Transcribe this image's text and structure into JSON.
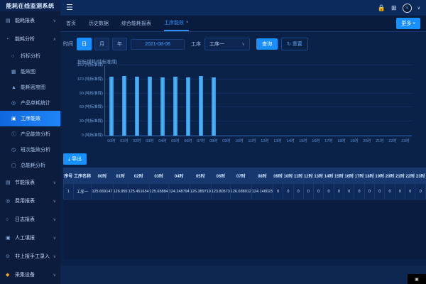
{
  "app": {
    "title": "能耗在线监测系统"
  },
  "topbar": {
    "icons": {
      "menu": "hamburger-icon",
      "lock": "lock-icon",
      "grid": "grid-icon",
      "avatar": "S",
      "dropdown": "chevron-down-icon"
    }
  },
  "sidebar": {
    "items": [
      {
        "label": "能耗报表",
        "icon": "report-icon",
        "glyph": "▤",
        "type": "group",
        "chevron": "∨"
      },
      {
        "label": "能耗分析",
        "icon": "analysis-icon",
        "glyph": "◔",
        "type": "group",
        "chevron": "∧"
      },
      {
        "label": "折标分析",
        "icon": "circle-icon",
        "glyph": "○",
        "type": "child"
      },
      {
        "label": "能效图",
        "icon": "chart-doc-icon",
        "glyph": "▦",
        "type": "child"
      },
      {
        "label": "能耗密度图",
        "icon": "triangle-chart-icon",
        "glyph": "▲",
        "type": "child"
      },
      {
        "label": "产品单耗统计",
        "icon": "target-icon",
        "glyph": "◎",
        "type": "child"
      },
      {
        "label": "工序能效",
        "icon": "grid-cell-icon",
        "glyph": "▣",
        "type": "child",
        "active": true
      },
      {
        "label": "产品能效分析",
        "icon": "info-circle-icon",
        "glyph": "ⓘ",
        "type": "child"
      },
      {
        "label": "班次能效分析",
        "icon": "clock-icon",
        "glyph": "◷",
        "type": "child"
      },
      {
        "label": "总能耗分析",
        "icon": "doc-icon",
        "glyph": "▢",
        "type": "child"
      },
      {
        "label": "节能报表",
        "icon": "report-icon",
        "glyph": "▤",
        "type": "group",
        "chevron": "∨"
      },
      {
        "label": "费用报表",
        "icon": "target-icon",
        "glyph": "◎",
        "type": "group",
        "chevron": "∨"
      },
      {
        "label": "日志报表",
        "icon": "circle-icon",
        "glyph": "○",
        "type": "group",
        "chevron": "∨"
      },
      {
        "label": "人工填报",
        "icon": "form-icon",
        "glyph": "▣",
        "type": "group",
        "chevron": "∨"
      },
      {
        "label": "非上报手工录入",
        "icon": "manual-entry-icon",
        "glyph": "⊙",
        "type": "group",
        "chevron": "∨"
      },
      {
        "label": "采集设备",
        "icon": "device-icon",
        "glyph": "◆",
        "type": "group",
        "chevron": "∨",
        "iconColor": "orange"
      }
    ]
  },
  "tabs": {
    "items": [
      {
        "label": "首页",
        "active": false,
        "closable": false
      },
      {
        "label": "历史数据",
        "active": false,
        "closable": false
      },
      {
        "label": "综合能耗报表",
        "active": false,
        "closable": false
      },
      {
        "label": "工序能效",
        "active": true,
        "closable": true
      }
    ],
    "more_label": "更多",
    "more_chevron": "∨",
    "close_glyph": "×"
  },
  "filters": {
    "time_label": "时间",
    "period_options": [
      "日",
      "月",
      "年"
    ],
    "period_selected": "日",
    "date_value": "2021-08-06",
    "process_label": "工序",
    "process_value": "工序一",
    "select_chevron": "∨",
    "search_label": "查询",
    "reset_label": "↻ 重置"
  },
  "chart_data": {
    "type": "bar",
    "title": "折标煤耗(吨标准煤)",
    "categories": [
      "00时",
      "01时",
      "02时",
      "03时",
      "04时",
      "05时",
      "06时",
      "07时",
      "08时",
      "09时",
      "10时",
      "11时",
      "12时",
      "13时",
      "14时",
      "15时",
      "16时",
      "17时",
      "18时",
      "19时",
      "20时",
      "21时",
      "22时",
      "23时"
    ],
    "values": [
      125.669147,
      126.955,
      125.451654,
      125.65884,
      124.248794,
      126.389719,
      123.80573,
      126.688912,
      124.148023,
      0,
      0,
      0,
      0,
      0,
      0,
      0,
      0,
      0,
      0,
      0,
      0,
      0,
      0,
      0
    ],
    "ylim": [
      0,
      150
    ],
    "yticks": [
      0,
      30,
      60,
      90,
      120,
      150
    ],
    "ytick_suffix": " (吨标准煤)",
    "xlabel": "",
    "ylabel": "折标煤耗(吨标准煤)",
    "grid": true,
    "legend": false,
    "bar_color": "#41aaf5"
  },
  "export": {
    "label": "⤓ 导出"
  },
  "table": {
    "columns": [
      "序号",
      "工序名称",
      "00时",
      "01时",
      "02时",
      "03时",
      "04时",
      "05时",
      "06时",
      "07时",
      "08时",
      "09时",
      "10时",
      "11时",
      "12时",
      "13时",
      "14时",
      "15时",
      "16时",
      "17时",
      "18时",
      "19时",
      "20时",
      "21时",
      "22时",
      "23时"
    ],
    "rows": [
      {
        "index": "1",
        "name": "工序一",
        "values": [
          "125.669147",
          "126.955",
          "125.451654",
          "125.65884",
          "124.248794",
          "126.389719",
          "123.80573",
          "126.688912",
          "124.148023",
          "0",
          "0",
          "0",
          "0",
          "0",
          "0",
          "0",
          "0",
          "0",
          "0",
          "0",
          "0",
          "0",
          "0",
          "0"
        ]
      }
    ]
  }
}
